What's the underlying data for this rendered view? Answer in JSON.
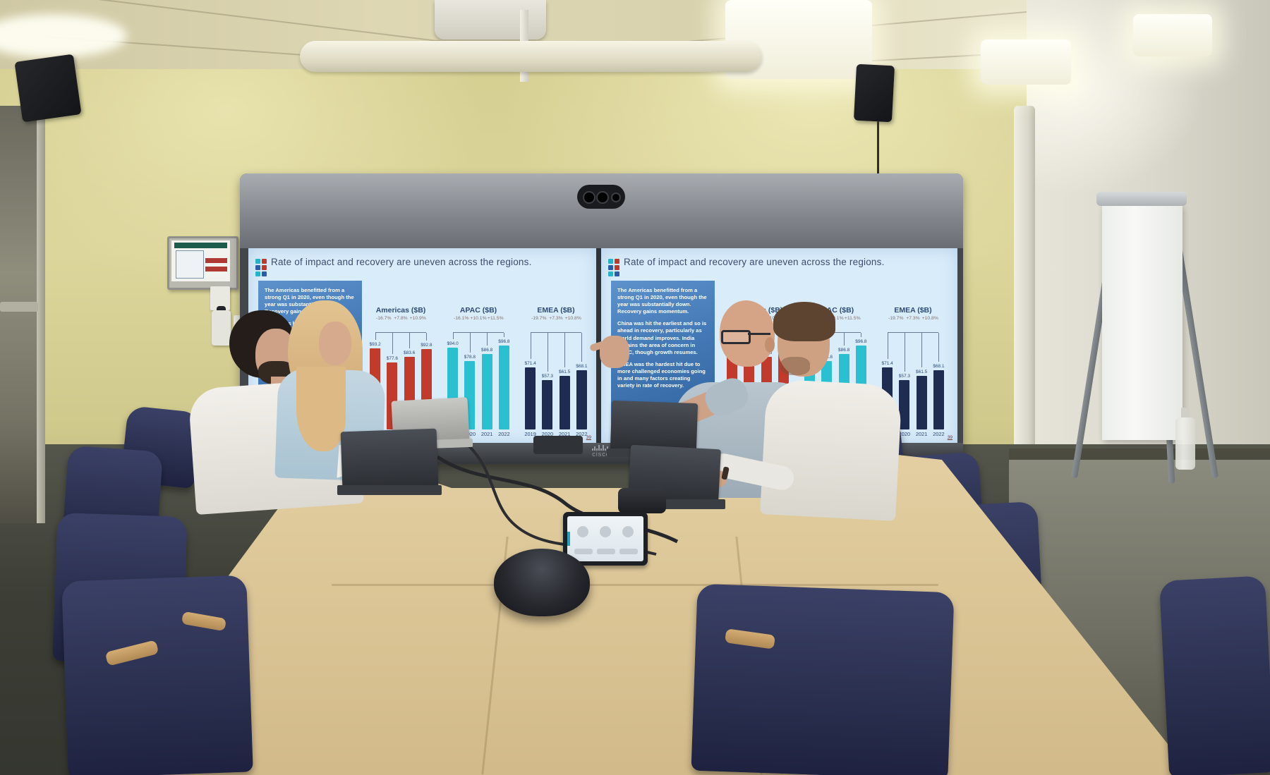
{
  "scene": {
    "description": "Meeting room with four people at a wooden conference table facing a dual-screen video system showing the same presentation slide on both screens"
  },
  "branding": {
    "display_logo": "cisco"
  },
  "slide": {
    "title": "Rate of impact and recovery are uneven across the regions.",
    "page_number": "39",
    "commentary": [
      "The Americas benefitted from a strong Q1 in 2020, even though the year was substantially down. Recovery gains momentum.",
      "China was hit the earliest and so is ahead in recovery, particularly as world demand improves. India remains the area of concern in APAC, though growth resumes.",
      "EMEA was the hardest hit due to more challenged economies going in and many factors creating variety in rate of recovery."
    ]
  },
  "chart_data": {
    "type": "bar",
    "title": "Rate of impact and recovery are uneven across the regions.",
    "categories": [
      "2019",
      "2020",
      "2021",
      "2022"
    ],
    "unit": "$B",
    "ylim": [
      0,
      100
    ],
    "grid": false,
    "groups": [
      {
        "name": "Americas ($B)",
        "values": [
          93.2,
          77.6,
          83.6,
          92.8
        ],
        "value_labels": [
          "$93.2",
          "$77.6",
          "$83.6",
          "$92.8"
        ],
        "change_labels": [
          "-16.7%",
          "+7.8%",
          "+10.9%"
        ],
        "bar_color": "#c23a2b"
      },
      {
        "name": "APAC ($B)",
        "values": [
          94.0,
          78.8,
          86.8,
          96.8
        ],
        "value_labels": [
          "$94.0",
          "$78.8",
          "$86.8",
          "$96.8"
        ],
        "change_labels": [
          "-16.1%",
          "+10.1%",
          "+11.5%"
        ],
        "bar_color": "#2ac0d2"
      },
      {
        "name": "EMEA ($B)",
        "values": [
          71.4,
          57.3,
          61.5,
          68.1
        ],
        "value_labels": [
          "$71.4",
          "$57.3",
          "$61.5",
          "$68.1"
        ],
        "change_labels": [
          "-19.7%",
          "+7.3%",
          "+10.8%"
        ],
        "bar_color": "#1d2c50"
      }
    ]
  },
  "colors": {
    "slide_background": "#d9ecfa",
    "slide_title_text": "#3b4c6e",
    "commentary_box": "#4379b6",
    "americas_bar": "#c23a2b",
    "apac_bar": "#2ac0d2",
    "emea_bar": "#1d2c50",
    "wall": "#dcd69c",
    "table_wood": "#e2cda2",
    "chairs": "#2c3150"
  }
}
